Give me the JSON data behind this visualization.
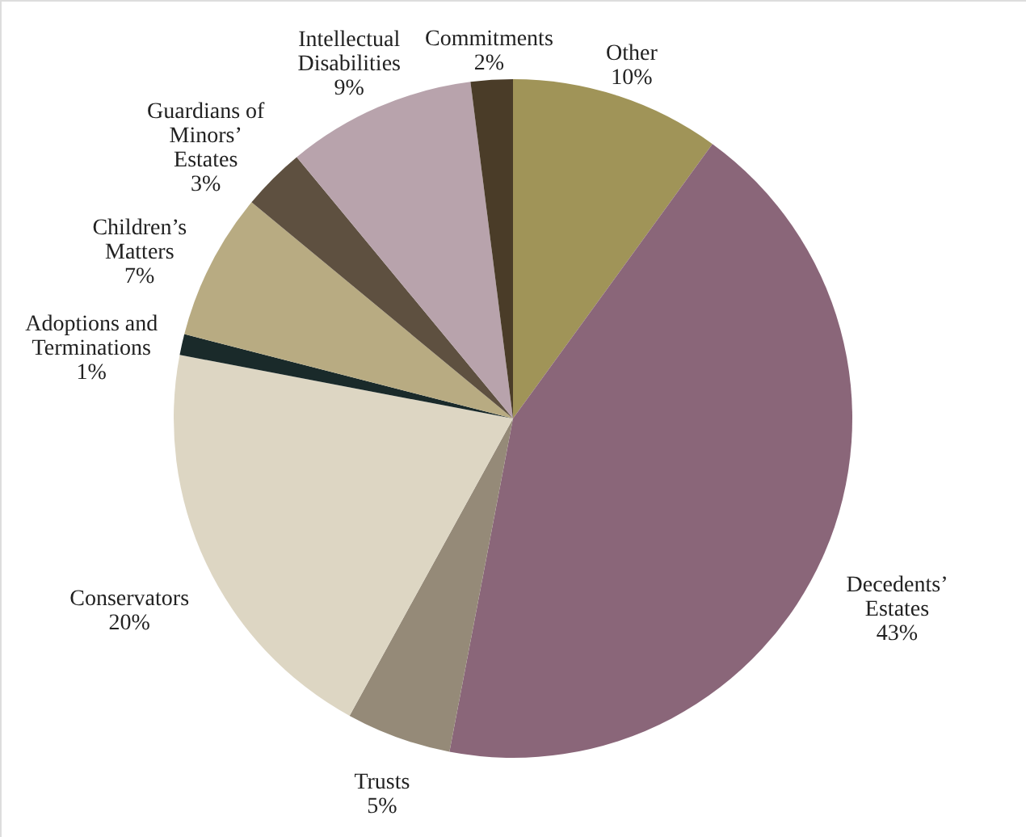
{
  "chart_data": {
    "type": "pie",
    "categories": [
      "Other",
      "Decedents’ Estates",
      "Trusts",
      "Conservators",
      "Adoptions and Terminations",
      "Children’s Matters",
      "Guardians of Minors’ Estates",
      "Intellectual Disabilities",
      "Commitments"
    ],
    "values": [
      10,
      43,
      5,
      20,
      1,
      7,
      3,
      9,
      2
    ],
    "value_labels": [
      "10%",
      "43%",
      "5%",
      "20%",
      "1%",
      "7%",
      "3%",
      "9%",
      "2%"
    ],
    "colors": [
      "#a09458",
      "#8a6679",
      "#958a78",
      "#ddd6c3",
      "#1a2a2a",
      "#b8ab82",
      "#5e5040",
      "#b8a3ac",
      "#4a3c28"
    ]
  }
}
